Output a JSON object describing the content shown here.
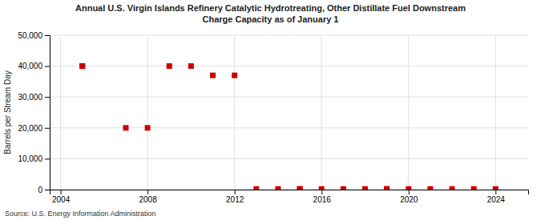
{
  "chart_data": {
    "type": "scatter",
    "title": "Annual U.S. Virgin Islands Refinery Catalytic Hydrotreating, Other Distillate Fuel Downstream\nCharge Capacity as of January 1",
    "ylabel": "Barrels per Stream Day",
    "source": "Source: U.S. Energy Information Administration",
    "color": "#cc0000",
    "marker": "square",
    "grid": true,
    "x": [
      2005,
      2005,
      2007,
      2008,
      2009,
      2010,
      2011,
      2012,
      2013,
      2014,
      2015,
      2015,
      2016,
      2017,
      2018,
      2019,
      2019,
      2020,
      2021,
      2022,
      2023,
      2024
    ],
    "values": [
      40000,
      40000,
      20000,
      20000,
      40000,
      40000,
      37000,
      37000,
      200,
      200,
      200,
      200,
      200,
      200,
      200,
      200,
      200,
      200,
      200,
      200,
      200,
      200
    ],
    "xlim": [
      2003.5,
      2025.5
    ],
    "xticks": [
      2004,
      2008,
      2012,
      2016,
      2020,
      2024
    ],
    "ylim": [
      0,
      50000
    ],
    "yticks": [
      0,
      {
        "value": 10000,
        "label": "10,000"
      },
      {
        "value": 20000,
        "label": "20,000"
      },
      {
        "value": 30000,
        "label": "30,000"
      },
      {
        "value": 40000,
        "label": "40,000"
      },
      {
        "value": 50000,
        "label": "50,000"
      }
    ]
  }
}
